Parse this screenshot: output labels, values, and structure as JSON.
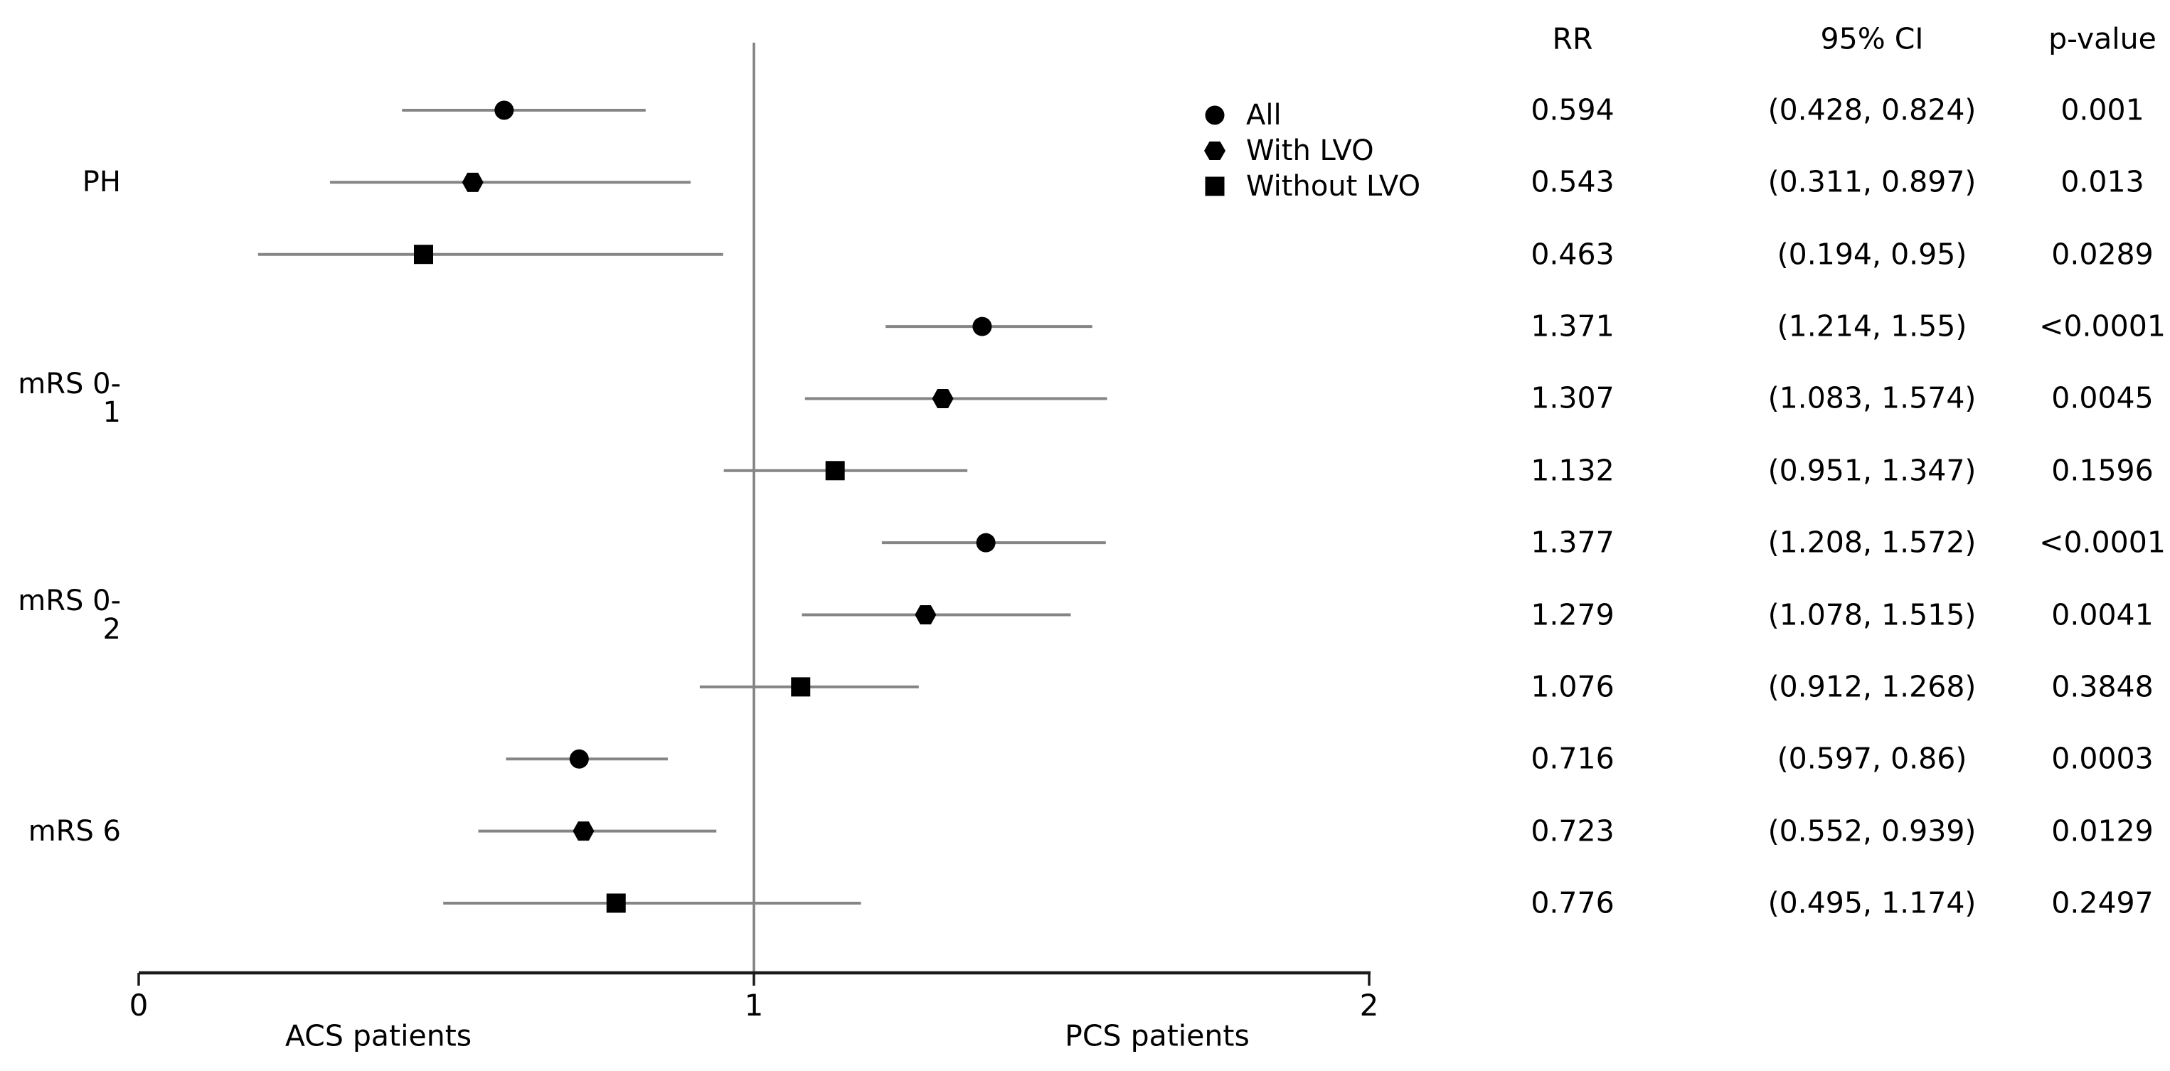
{
  "figure": {
    "background": "#ffffff",
    "text_color": "#000000",
    "ci_line_color": "#858585",
    "reference_line_color": "#808080",
    "axis_color": "#1a1a1a",
    "marker_color": "#000000"
  },
  "legend": {
    "items": [
      {
        "label": "All",
        "marker": "circle"
      },
      {
        "label": "With LVO",
        "marker": "hexagon"
      },
      {
        "label": "Without LVO",
        "marker": "square"
      }
    ]
  },
  "table": {
    "headers": [
      "RR",
      "95% CI",
      "p-value"
    ]
  },
  "axis": {
    "range": [
      0,
      2
    ],
    "reference_value": 1,
    "ticks": [
      {
        "label": "0",
        "value": 0
      },
      {
        "label": "1",
        "value": 1
      },
      {
        "label": "2",
        "value": 2
      }
    ],
    "left_label": "ACS patients",
    "right_label": "PCS patients"
  },
  "chart_data": {
    "type": "forest",
    "title": "",
    "xlabel_left": "ACS patients",
    "xlabel_right": "PCS patients",
    "xlim": [
      0,
      2
    ],
    "reference_line_x": 1,
    "grid": false,
    "legend_position": "upper right inside plot",
    "groups": [
      {
        "label": "PH",
        "rows": [
          0,
          1,
          2
        ]
      },
      {
        "label": "mRS 0-1",
        "rows": [
          3,
          4,
          5
        ]
      },
      {
        "label": "mRS 0-2",
        "rows": [
          6,
          7,
          8
        ]
      },
      {
        "label": "mRS 6",
        "rows": [
          9,
          10,
          11
        ]
      }
    ],
    "rows": [
      {
        "group": "PH",
        "series": "All",
        "marker": "circle",
        "rr": 0.594,
        "ci_low": 0.428,
        "ci_high": 0.824,
        "rr_text": "0.594",
        "ci_text": "(0.428, 0.824)",
        "p_text": "0.001"
      },
      {
        "group": "PH",
        "series": "With LVO",
        "marker": "hexagon",
        "rr": 0.543,
        "ci_low": 0.311,
        "ci_high": 0.897,
        "rr_text": "0.543",
        "ci_text": "(0.311, 0.897)",
        "p_text": "0.013"
      },
      {
        "group": "PH",
        "series": "Without LVO",
        "marker": "square",
        "rr": 0.463,
        "ci_low": 0.194,
        "ci_high": 0.95,
        "rr_text": "0.463",
        "ci_text": "(0.194, 0.95)",
        "p_text": "0.0289"
      },
      {
        "group": "mRS 0-1",
        "series": "All",
        "marker": "circle",
        "rr": 1.371,
        "ci_low": 1.214,
        "ci_high": 1.55,
        "rr_text": "1.371",
        "ci_text": "(1.214, 1.55)",
        "p_text": "<0.0001"
      },
      {
        "group": "mRS 0-1",
        "series": "With LVO",
        "marker": "hexagon",
        "rr": 1.307,
        "ci_low": 1.083,
        "ci_high": 1.574,
        "rr_text": "1.307",
        "ci_text": "(1.083, 1.574)",
        "p_text": "0.0045"
      },
      {
        "group": "mRS 0-1",
        "series": "Without LVO",
        "marker": "square",
        "rr": 1.132,
        "ci_low": 0.951,
        "ci_high": 1.347,
        "rr_text": "1.132",
        "ci_text": "(0.951, 1.347)",
        "p_text": "0.1596"
      },
      {
        "group": "mRS 0-2",
        "series": "All",
        "marker": "circle",
        "rr": 1.377,
        "ci_low": 1.208,
        "ci_high": 1.572,
        "rr_text": "1.377",
        "ci_text": "(1.208, 1.572)",
        "p_text": "<0.0001"
      },
      {
        "group": "mRS 0-2",
        "series": "With LVO",
        "marker": "hexagon",
        "rr": 1.279,
        "ci_low": 1.078,
        "ci_high": 1.515,
        "rr_text": "1.279",
        "ci_text": "(1.078, 1.515)",
        "p_text": "0.0041"
      },
      {
        "group": "mRS 0-2",
        "series": "Without LVO",
        "marker": "square",
        "rr": 1.076,
        "ci_low": 0.912,
        "ci_high": 1.268,
        "rr_text": "1.076",
        "ci_text": "(0.912, 1.268)",
        "p_text": "0.3848"
      },
      {
        "group": "mRS 6",
        "series": "All",
        "marker": "circle",
        "rr": 0.716,
        "ci_low": 0.597,
        "ci_high": 0.86,
        "rr_text": "0.716",
        "ci_text": "(0.597, 0.86)",
        "p_text": "0.0003"
      },
      {
        "group": "mRS 6",
        "series": "With LVO",
        "marker": "hexagon",
        "rr": 0.723,
        "ci_low": 0.552,
        "ci_high": 0.939,
        "rr_text": "0.723",
        "ci_text": "(0.552, 0.939)",
        "p_text": "0.0129"
      },
      {
        "group": "mRS 6",
        "series": "Without LVO",
        "marker": "square",
        "rr": 0.776,
        "ci_low": 0.495,
        "ci_high": 1.174,
        "rr_text": "0.776",
        "ci_text": "(0.495, 1.174)",
        "p_text": "0.2497"
      }
    ]
  }
}
